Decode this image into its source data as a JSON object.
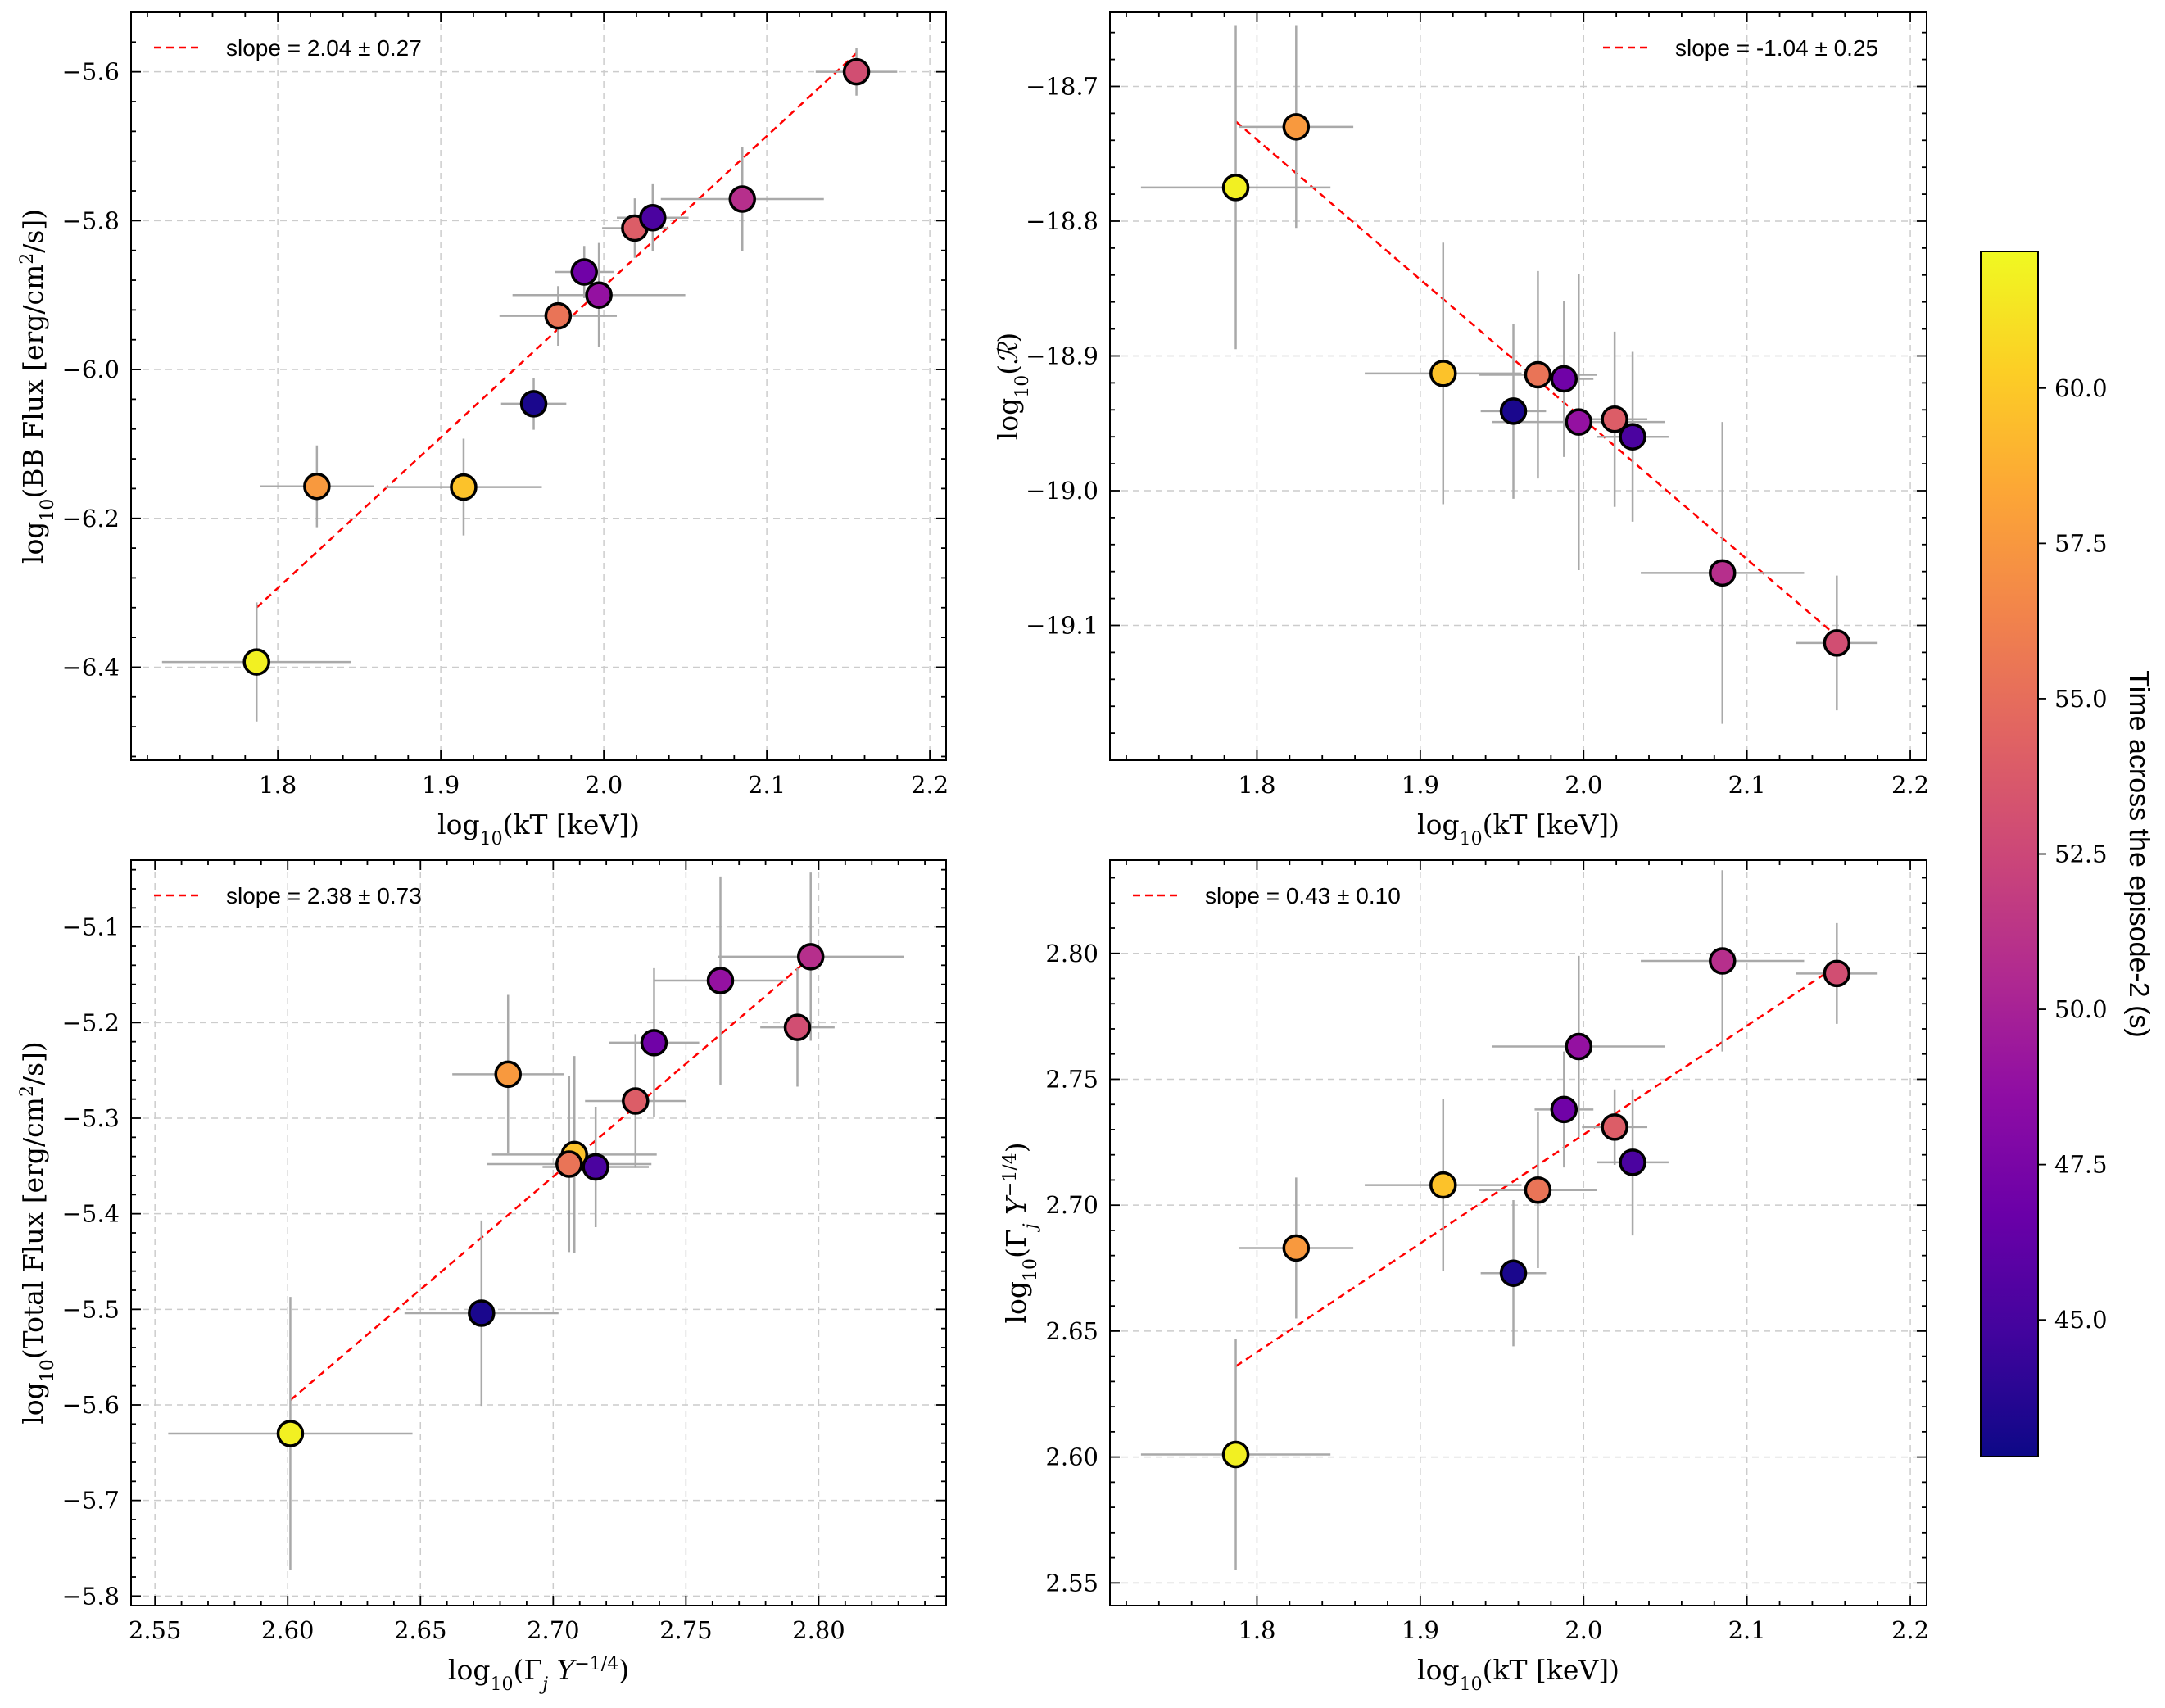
{
  "colorbar": {
    "label": "Time across the episode-2 (s)",
    "vmin": 42.8,
    "vmax": 62.2,
    "ticks": [
      45.0,
      47.5,
      50.0,
      52.5,
      55.0,
      57.5,
      60.0
    ],
    "tick_labels": [
      "45.0",
      "47.5",
      "50.0",
      "52.5",
      "55.0",
      "57.5",
      "60.0"
    ],
    "colormap": "plasma"
  },
  "colors": {
    "fit_line": "#ff0000",
    "error_bar": "#a9a9a9",
    "grid": "#cccccc"
  },
  "chart_data": [
    {
      "id": "bb-flux",
      "type": "scatter",
      "xlabel": "log10(kT [keV])",
      "ylabel": "log10(BB Flux [erg/cm2/s])",
      "xlim": [
        1.71,
        2.21
      ],
      "ylim": [
        -6.525,
        -5.52
      ],
      "xticks": [
        1.8,
        1.9,
        2.0,
        2.1,
        2.2
      ],
      "xtick_labels": [
        "1.8",
        "1.9",
        "2.0",
        "2.1",
        "2.2"
      ],
      "yticks": [
        -6.4,
        -6.2,
        -6.0,
        -5.8,
        -5.6
      ],
      "ytick_labels": [
        "−6.4",
        "−6.2",
        "−6.0",
        "−5.8",
        "−5.6"
      ],
      "legend": "slope = 2.04 ± 0.27",
      "legend_loc": "upper-left",
      "fit": {
        "x": [
          1.787,
          2.155
        ],
        "y": [
          -6.32,
          -5.575
        ]
      },
      "points": [
        {
          "x": 1.787,
          "y": -6.393,
          "xerr": 0.058,
          "yerr": 0.08,
          "t": 61.8
        },
        {
          "x": 1.824,
          "y": -6.157,
          "xerr": 0.035,
          "yerr": 0.055,
          "t": 57.6
        },
        {
          "x": 1.914,
          "y": -6.158,
          "xerr": 0.048,
          "yerr": 0.065,
          "t": 59.7
        },
        {
          "x": 1.957,
          "y": -6.046,
          "xerr": 0.02,
          "yerr": 0.035,
          "t": 43.3
        },
        {
          "x": 1.972,
          "y": -5.928,
          "xerr": 0.036,
          "yerr": 0.04,
          "t": 55.4
        },
        {
          "x": 1.988,
          "y": -5.869,
          "xerr": 0.018,
          "yerr": 0.035,
          "t": 47.0
        },
        {
          "x": 1.997,
          "y": -5.9,
          "xerr": 0.053,
          "yerr": 0.07,
          "t": 48.9
        },
        {
          "x": 2.019,
          "y": -5.81,
          "xerr": 0.02,
          "yerr": 0.04,
          "t": 54.0
        },
        {
          "x": 2.03,
          "y": -5.796,
          "xerr": 0.022,
          "yerr": 0.045,
          "t": 45.2
        },
        {
          "x": 2.085,
          "y": -5.771,
          "xerr": 0.05,
          "yerr": 0.07,
          "t": 50.9
        },
        {
          "x": 2.155,
          "y": -5.6,
          "xerr": 0.025,
          "yerr": 0.032,
          "t": 53.0
        }
      ]
    },
    {
      "id": "r-param",
      "type": "scatter",
      "xlabel": "log10(kT [keV])",
      "ylabel": "log10(R)",
      "xlim": [
        1.71,
        2.21
      ],
      "ylim": [
        -19.2,
        -18.645
      ],
      "xticks": [
        1.8,
        1.9,
        2.0,
        2.1,
        2.2
      ],
      "xtick_labels": [
        "1.8",
        "1.9",
        "2.0",
        "2.1",
        "2.2"
      ],
      "yticks": [
        -19.1,
        -19.0,
        -18.9,
        -18.8,
        -18.7
      ],
      "ytick_labels": [
        "−19.1",
        "−19.0",
        "−18.9",
        "−18.8",
        "−18.7"
      ],
      "legend": "slope = -1.04 ± 0.25",
      "legend_loc": "upper-right",
      "fit": {
        "x": [
          1.787,
          2.155
        ],
        "y": [
          -18.726,
          -19.108
        ]
      },
      "points": [
        {
          "x": 1.787,
          "y": -18.775,
          "xerr": 0.058,
          "yerr": 0.12,
          "t": 61.8
        },
        {
          "x": 1.824,
          "y": -18.73,
          "xerr": 0.035,
          "yerr": 0.075,
          "t": 57.6
        },
        {
          "x": 1.914,
          "y": -18.913,
          "xerr": 0.048,
          "yerr": 0.097,
          "t": 59.7
        },
        {
          "x": 1.957,
          "y": -18.941,
          "xerr": 0.02,
          "yerr": 0.065,
          "t": 43.3
        },
        {
          "x": 1.972,
          "y": -18.914,
          "xerr": 0.036,
          "yerr": 0.077,
          "t": 55.4
        },
        {
          "x": 1.988,
          "y": -18.917,
          "xerr": 0.018,
          "yerr": 0.058,
          "t": 47.0
        },
        {
          "x": 1.997,
          "y": -18.949,
          "xerr": 0.053,
          "yerr": 0.11,
          "t": 48.9
        },
        {
          "x": 2.019,
          "y": -18.947,
          "xerr": 0.02,
          "yerr": 0.065,
          "t": 54.0
        },
        {
          "x": 2.03,
          "y": -18.96,
          "xerr": 0.022,
          "yerr": 0.063,
          "t": 45.2
        },
        {
          "x": 2.085,
          "y": -19.061,
          "xerr": 0.05,
          "yerr": 0.112,
          "t": 50.9
        },
        {
          "x": 2.155,
          "y": -19.113,
          "xerr": 0.025,
          "yerr": 0.05,
          "t": 53.0
        }
      ]
    },
    {
      "id": "total-flux",
      "type": "scatter",
      "xlabel": "log10(Γj Y^-1/4)",
      "ylabel": "log10(Total Flux [erg/cm2/s])",
      "xlim": [
        2.541,
        2.848
      ],
      "ylim": [
        -5.81,
        -5.03
      ],
      "xticks": [
        2.55,
        2.6,
        2.65,
        2.7,
        2.75,
        2.8
      ],
      "xtick_labels": [
        "2.55",
        "2.60",
        "2.65",
        "2.70",
        "2.75",
        "2.80"
      ],
      "yticks": [
        -5.8,
        -5.7,
        -5.6,
        -5.5,
        -5.4,
        -5.3,
        -5.2,
        -5.1
      ],
      "ytick_labels": [
        "−5.8",
        "−5.7",
        "−5.6",
        "−5.5",
        "−5.4",
        "−5.3",
        "−5.2",
        "−5.1"
      ],
      "legend": "slope = 2.38 ± 0.73",
      "legend_loc": "upper-left",
      "fit": {
        "x": [
          2.601,
          2.797
        ],
        "y": [
          -5.595,
          -5.132
        ]
      },
      "points": [
        {
          "x": 2.601,
          "y": -5.63,
          "xerr": 0.046,
          "yerr": 0.143,
          "t": 61.8
        },
        {
          "x": 2.683,
          "y": -5.254,
          "xerr": 0.021,
          "yerr": 0.083,
          "t": 57.6
        },
        {
          "x": 2.708,
          "y": -5.338,
          "xerr": 0.031,
          "yerr": 0.103,
          "t": 59.7
        },
        {
          "x": 2.673,
          "y": -5.504,
          "xerr": 0.029,
          "yerr": 0.097,
          "t": 43.3
        },
        {
          "x": 2.706,
          "y": -5.348,
          "xerr": 0.031,
          "yerr": 0.092,
          "t": 55.4
        },
        {
          "x": 2.738,
          "y": -5.221,
          "xerr": 0.017,
          "yerr": 0.078,
          "t": 47.0
        },
        {
          "x": 2.763,
          "y": -5.156,
          "xerr": 0.025,
          "yerr": 0.109,
          "t": 48.9
        },
        {
          "x": 2.731,
          "y": -5.282,
          "xerr": 0.019,
          "yerr": 0.07,
          "t": 54.0
        },
        {
          "x": 2.716,
          "y": -5.351,
          "xerr": 0.02,
          "yerr": 0.063,
          "t": 45.2
        },
        {
          "x": 2.797,
          "y": -5.131,
          "xerr": 0.035,
          "yerr": 0.088,
          "t": 50.9
        },
        {
          "x": 2.792,
          "y": -5.205,
          "xerr": 0.014,
          "yerr": 0.062,
          "t": 53.0
        }
      ]
    },
    {
      "id": "gamma-kt",
      "type": "scatter",
      "xlabel": "log10(kT [keV])",
      "ylabel": "log10(Γj Y^-1/4)",
      "xlim": [
        1.71,
        2.21
      ],
      "ylim": [
        2.541,
        2.837
      ],
      "xticks": [
        1.8,
        1.9,
        2.0,
        2.1,
        2.2
      ],
      "xtick_labels": [
        "1.8",
        "1.9",
        "2.0",
        "2.1",
        "2.2"
      ],
      "yticks": [
        2.55,
        2.6,
        2.65,
        2.7,
        2.75,
        2.8
      ],
      "ytick_labels": [
        "2.55",
        "2.60",
        "2.65",
        "2.70",
        "2.75",
        "2.80"
      ],
      "legend": "slope = 0.43 ± 0.10",
      "legend_loc": "upper-left",
      "fit": {
        "x": [
          1.787,
          2.155
        ],
        "y": [
          2.636,
          2.795
        ]
      },
      "points": [
        {
          "x": 1.787,
          "y": 2.601,
          "xerr": 0.058,
          "yerr": 0.046,
          "t": 61.8
        },
        {
          "x": 1.824,
          "y": 2.683,
          "xerr": 0.035,
          "yerr": 0.028,
          "t": 57.6
        },
        {
          "x": 1.914,
          "y": 2.708,
          "xerr": 0.048,
          "yerr": 0.034,
          "t": 59.7
        },
        {
          "x": 1.957,
          "y": 2.673,
          "xerr": 0.02,
          "yerr": 0.029,
          "t": 43.3
        },
        {
          "x": 1.972,
          "y": 2.706,
          "xerr": 0.036,
          "yerr": 0.031,
          "t": 55.4
        },
        {
          "x": 1.988,
          "y": 2.738,
          "xerr": 0.018,
          "yerr": 0.023,
          "t": 47.0
        },
        {
          "x": 1.997,
          "y": 2.763,
          "xerr": 0.053,
          "yerr": 0.036,
          "t": 48.9
        },
        {
          "x": 2.019,
          "y": 2.731,
          "xerr": 0.02,
          "yerr": 0.015,
          "t": 54.0
        },
        {
          "x": 2.03,
          "y": 2.717,
          "xerr": 0.022,
          "yerr": 0.029,
          "t": 45.2
        },
        {
          "x": 2.085,
          "y": 2.797,
          "xerr": 0.05,
          "yerr": 0.036,
          "t": 50.9
        },
        {
          "x": 2.155,
          "y": 2.792,
          "xerr": 0.025,
          "yerr": 0.02,
          "t": 53.0
        }
      ]
    }
  ]
}
